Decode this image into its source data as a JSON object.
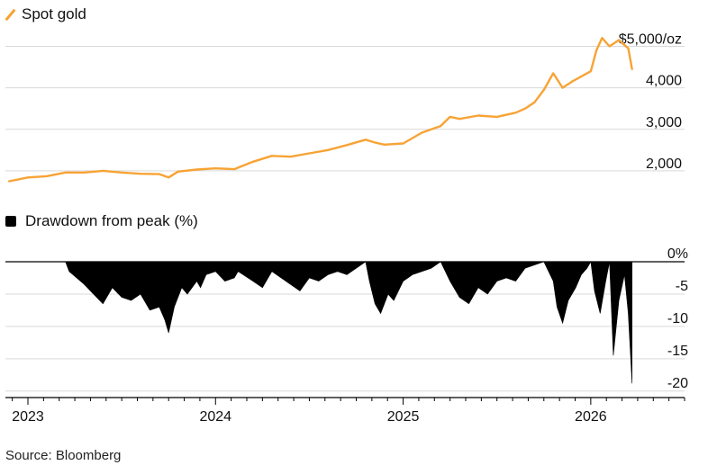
{
  "legend": {
    "gold_label": "Spot gold",
    "drawdown_label": "Drawdown from peak (%)"
  },
  "source": "Source: Bloomberg",
  "colors": {
    "gold": "#F7A335",
    "drawdown": "#000000",
    "grid": "#d9d9d9",
    "text": "#111111"
  },
  "chart_data": [
    {
      "type": "line",
      "title": "Spot gold",
      "unit": "$/oz",
      "ylim": [
        1500,
        5400
      ],
      "yticks": [
        2000,
        3000,
        4000,
        5000
      ],
      "ytick_labels": [
        "2,000",
        "3,000",
        "4,000",
        "$5,000/oz"
      ],
      "xlim": [
        2022.88,
        2026.5
      ],
      "xticks": [
        2023,
        2024,
        2025,
        2026
      ],
      "xtick_labels": [
        "2023",
        "2024",
        "2025",
        "2026"
      ],
      "series": [
        {
          "name": "Spot gold",
          "x": [
            2022.9,
            2023.0,
            2023.1,
            2023.2,
            2023.3,
            2023.4,
            2023.5,
            2023.6,
            2023.7,
            2023.75,
            2023.8,
            2023.9,
            2024.0,
            2024.1,
            2024.2,
            2024.3,
            2024.4,
            2024.5,
            2024.6,
            2024.7,
            2024.8,
            2024.85,
            2024.9,
            2025.0,
            2025.1,
            2025.2,
            2025.25,
            2025.3,
            2025.4,
            2025.5,
            2025.6,
            2025.65,
            2025.7,
            2025.75,
            2025.8,
            2025.85,
            2025.9,
            2026.0,
            2026.03,
            2026.06,
            2026.1,
            2026.15,
            2026.2,
            2026.22
          ],
          "values": [
            1750,
            1840,
            1870,
            1960,
            1960,
            2000,
            1960,
            1930,
            1920,
            1840,
            1980,
            2030,
            2060,
            2040,
            2220,
            2360,
            2340,
            2420,
            2500,
            2620,
            2750,
            2680,
            2630,
            2660,
            2920,
            3080,
            3300,
            3250,
            3330,
            3300,
            3400,
            3500,
            3650,
            3950,
            4350,
            4000,
            4150,
            4400,
            4900,
            5200,
            5000,
            5150,
            4950,
            4450
          ]
        }
      ]
    },
    {
      "type": "area",
      "title": "Drawdown from peak (%)",
      "unit": "%",
      "ylim": [
        -21,
        0
      ],
      "yticks": [
        0,
        -5,
        -10,
        -15,
        -20
      ],
      "ytick_labels": [
        "0%",
        "-5",
        "-10",
        "-15",
        "-20"
      ],
      "xlim": [
        2022.88,
        2026.5
      ],
      "xticks": [
        2023,
        2024,
        2025,
        2026
      ],
      "xtick_labels": [
        "2023",
        "2024",
        "2025",
        "2026"
      ],
      "series": [
        {
          "name": "Drawdown",
          "x": [
            2022.9,
            2023.2,
            2023.22,
            2023.3,
            2023.35,
            2023.4,
            2023.45,
            2023.5,
            2023.55,
            2023.6,
            2023.65,
            2023.7,
            2023.73,
            2023.75,
            2023.78,
            2023.82,
            2023.85,
            2023.9,
            2023.92,
            2023.95,
            2024.0,
            2024.05,
            2024.1,
            2024.12,
            2024.2,
            2024.25,
            2024.3,
            2024.35,
            2024.4,
            2024.45,
            2024.5,
            2024.55,
            2024.6,
            2024.65,
            2024.7,
            2024.8,
            2024.82,
            2024.85,
            2024.88,
            2024.92,
            2024.95,
            2025.0,
            2025.05,
            2025.1,
            2025.15,
            2025.2,
            2025.25,
            2025.3,
            2025.35,
            2025.4,
            2025.45,
            2025.5,
            2025.55,
            2025.6,
            2025.65,
            2025.75,
            2025.8,
            2025.82,
            2025.85,
            2025.88,
            2025.92,
            2025.95,
            2025.98,
            2026.0,
            2026.02,
            2026.05,
            2026.08,
            2026.1,
            2026.12,
            2026.15,
            2026.18,
            2026.2,
            2026.22
          ],
          "values": [
            0,
            0,
            -1.5,
            -3.5,
            -5,
            -6.5,
            -4,
            -5.5,
            -6,
            -5,
            -7.5,
            -7,
            -9,
            -11,
            -7,
            -4,
            -5,
            -3,
            -4,
            -2,
            -1.5,
            -3,
            -2.5,
            -1.5,
            -3,
            -4,
            -1.5,
            -2.5,
            -3.5,
            -4.5,
            -2.5,
            -3,
            -2,
            -1.5,
            -2,
            0,
            -3,
            -6.5,
            -8,
            -5,
            -6,
            -3,
            -2,
            -1.5,
            -1,
            0,
            -3,
            -5.5,
            -6.5,
            -4,
            -5,
            -3,
            -2.5,
            -3,
            -1,
            0,
            -3,
            -7,
            -9.5,
            -6,
            -4,
            -2,
            -1,
            0,
            -4.5,
            -8,
            -3,
            0,
            -14.5,
            -6,
            -2,
            -8,
            -18.8
          ]
        }
      ]
    }
  ]
}
